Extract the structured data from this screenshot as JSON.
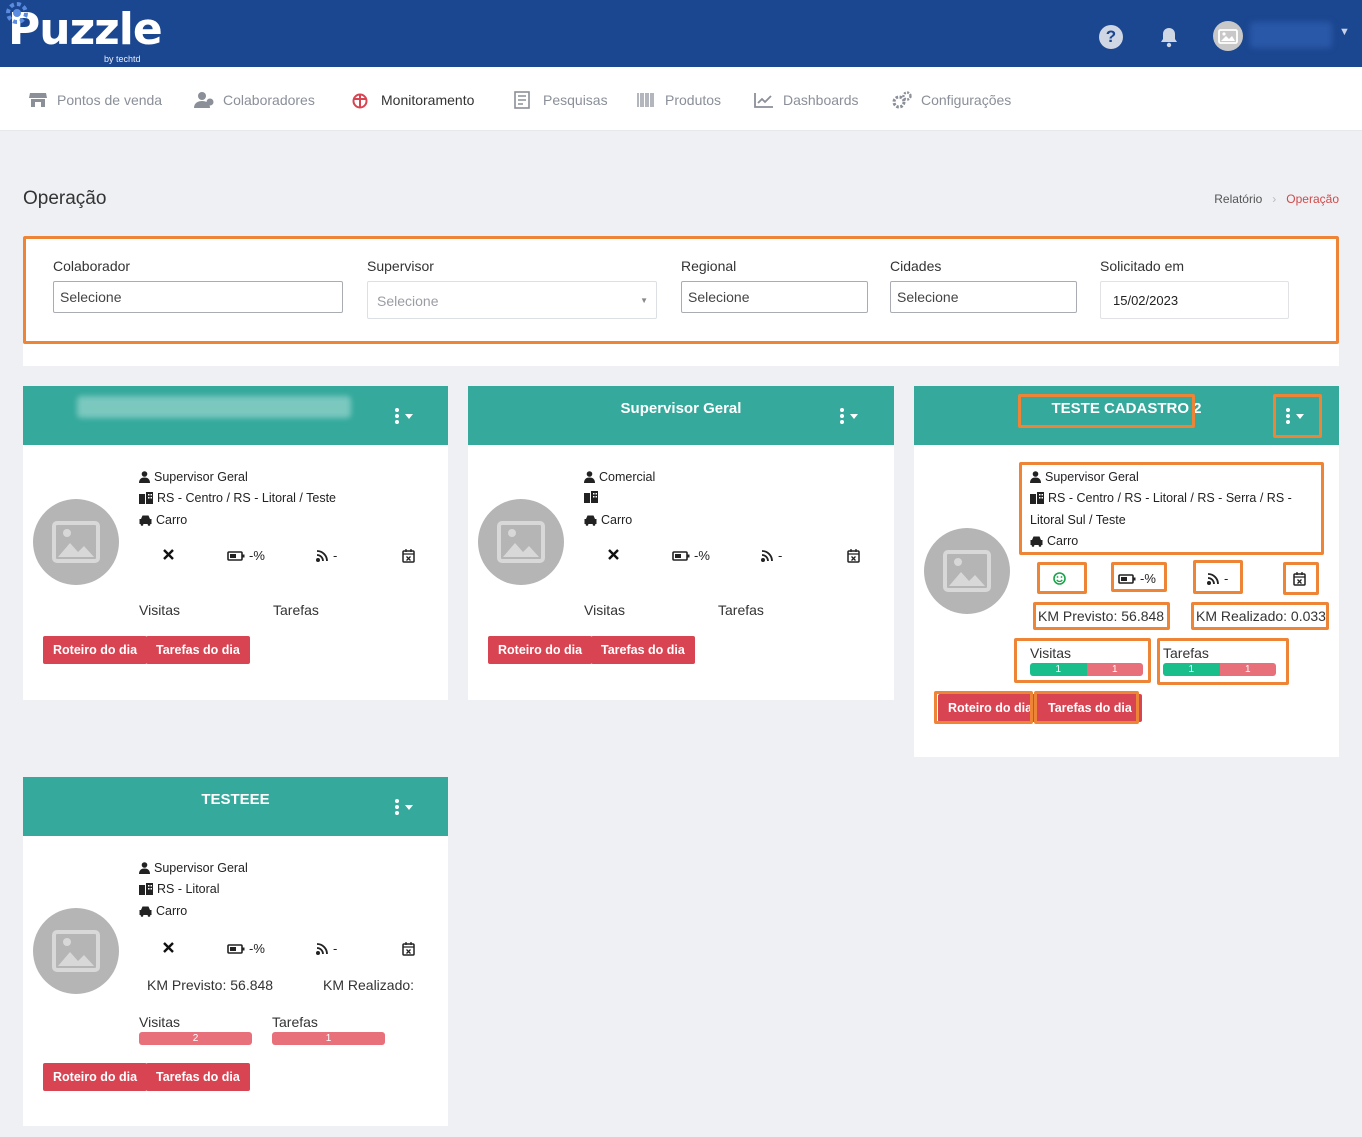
{
  "header": {
    "logo_text": "Puzzle",
    "logo_sub": "by techtd",
    "help_symbol": "?"
  },
  "nav": [
    {
      "label": "Pontos de venda",
      "icon": "store-icon"
    },
    {
      "label": "Colaboradores",
      "icon": "users-icon"
    },
    {
      "label": "Monitoramento",
      "icon": "monitor-icon"
    },
    {
      "label": "Pesquisas",
      "icon": "survey-icon"
    },
    {
      "label": "Produtos",
      "icon": "barcode-icon"
    },
    {
      "label": "Dashboards",
      "icon": "chart-icon"
    },
    {
      "label": "Configurações",
      "icon": "gears-icon"
    }
  ],
  "page": {
    "title": "Operação",
    "breadcrumb": [
      "Relatório",
      "Operação"
    ]
  },
  "filters": {
    "colaborador": {
      "label": "Colaborador",
      "value": "Selecione"
    },
    "supervisor": {
      "label": "Supervisor",
      "value": "Selecione"
    },
    "regional": {
      "label": "Regional",
      "value": "Selecione"
    },
    "cidades": {
      "label": "Cidades",
      "value": "Selecione"
    },
    "solicitado": {
      "label": "Solicitado em",
      "value": "15/02/2023"
    }
  },
  "cards": [
    {
      "title": "",
      "role": "Supervisor Geral",
      "regions": "RS - Centro / RS - Litoral / Teste",
      "vehicle": "Carro",
      "battery": "-%",
      "signal": "-",
      "visits_label": "Visitas",
      "tasks_label": "Tarefas",
      "btn_route": "Roteiro do dia",
      "btn_tasks": "Tarefas do dia"
    },
    {
      "title": "Supervisor Geral",
      "role": "Comercial",
      "regions": "",
      "vehicle": "Carro",
      "battery": "-%",
      "signal": "-",
      "visits_label": "Visitas",
      "tasks_label": "Tarefas",
      "btn_route": "Roteiro do dia",
      "btn_tasks": "Tarefas do dia"
    },
    {
      "title": "TESTE CADASTRO 2",
      "role": "Supervisor Geral",
      "regions_l1": "RS - Centro / RS - Litoral / RS - Serra / RS -",
      "regions_l2": "Litoral Sul / Teste",
      "vehicle": "Carro",
      "battery": "-%",
      "signal": "-",
      "km_prev": "KM Previsto: 56.848",
      "km_real": "KM Realizado: 0.033",
      "visits_label": "Visitas",
      "visits_done": "1",
      "visits_pending": "1",
      "tasks_label": "Tarefas",
      "tasks_done": "1",
      "tasks_pending": "1",
      "btn_route": "Roteiro do dia",
      "btn_tasks": "Tarefas do dia"
    },
    {
      "title": "TESTEEE",
      "role": "Supervisor Geral",
      "regions": "RS - Litoral",
      "vehicle": "Carro",
      "battery": "-%",
      "signal": "-",
      "km_prev": "KM Previsto: 56.848",
      "km_real": "KM Realizado:",
      "visits_label": "Visitas",
      "visits_pending": "2",
      "tasks_label": "Tarefas",
      "tasks_pending": "1",
      "btn_route": "Roteiro do dia",
      "btn_tasks": "Tarefas do dia"
    }
  ],
  "colors": {
    "header_bg": "#1b4690",
    "card_head": "#34a99c",
    "btn_red": "#d84452",
    "highlight": "#ee8436",
    "bar_green": "#19be8a",
    "bar_red": "#e8707a"
  }
}
